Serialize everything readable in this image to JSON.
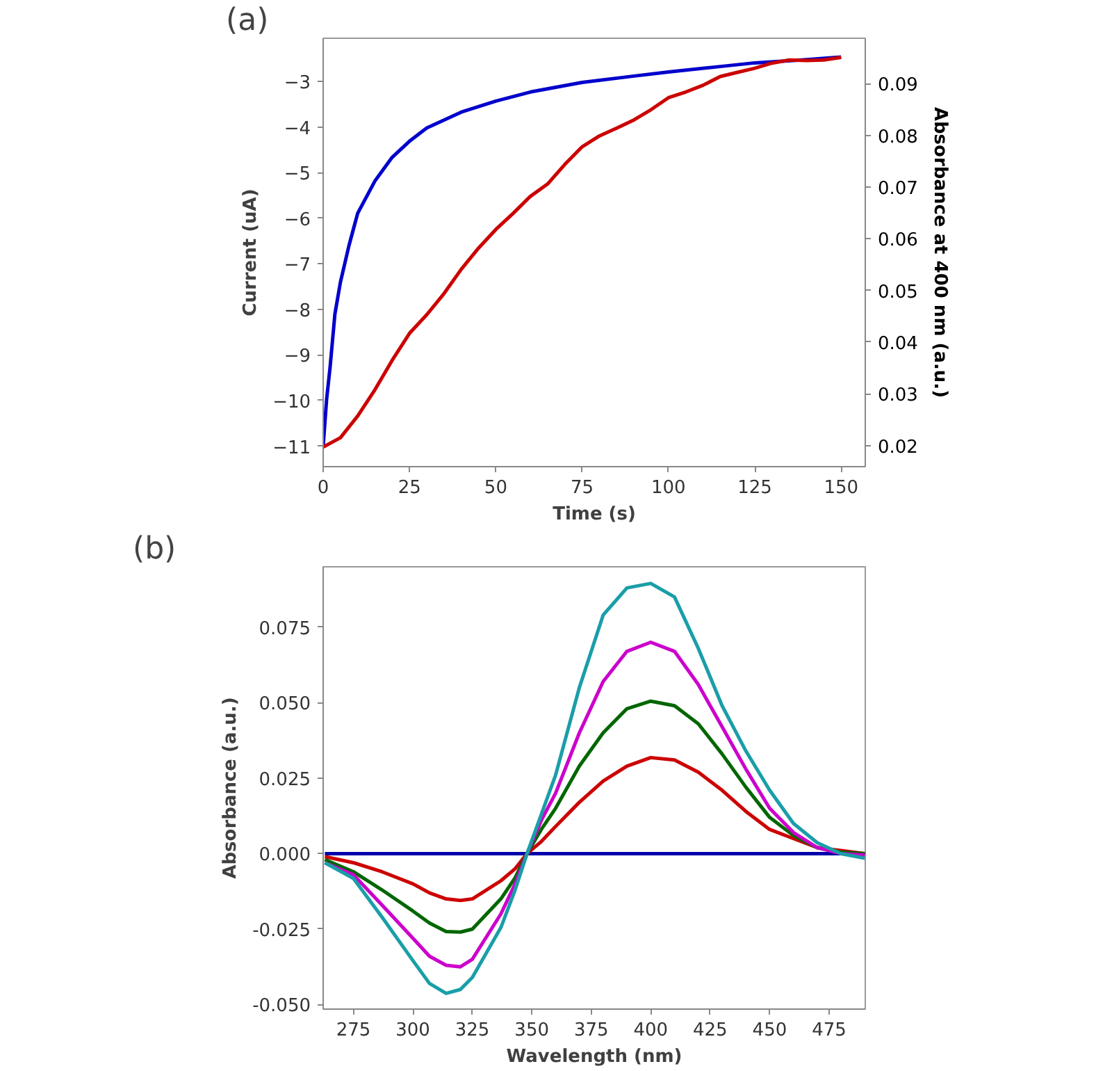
{
  "chart_data": [
    {
      "type": "line",
      "title": "(a)",
      "xlabel": "Time (s)",
      "ylabel": "Current (uA)",
      "y2label": "Absorbance at 400 nm (a.u.)",
      "xlim": [
        0,
        157
      ],
      "xticks": [
        0,
        25,
        50,
        75,
        100,
        125,
        150
      ],
      "ylim": [
        -11.45,
        -2.05
      ],
      "yticks": [
        -11,
        -10,
        -9,
        -8,
        -7,
        -6,
        -5,
        -4,
        -3
      ],
      "y2lim": [
        0.0159,
        0.0988
      ],
      "y2ticks": [
        0.02,
        0.03,
        0.04,
        0.05,
        0.06,
        0.07,
        0.08,
        0.09
      ],
      "grid": false,
      "series": [
        {
          "color": "#0000cc",
          "x": [
            0,
            1,
            2,
            3.4,
            5,
            7.5,
            10,
            15,
            20,
            25,
            30,
            40,
            50,
            60,
            75,
            90,
            100,
            115,
            125,
            140,
            150
          ],
          "values": [
            -11.0,
            -9.97,
            -9.27,
            -8.1,
            -7.4,
            -6.59,
            -5.89,
            -5.18,
            -4.66,
            -4.31,
            -4.02,
            -3.67,
            -3.43,
            -3.23,
            -3.02,
            -2.88,
            -2.79,
            -2.67,
            -2.59,
            -2.52,
            -2.46
          ]
        },
        {
          "color": "#cc0000",
          "axis": "y2",
          "x": [
            0,
            5,
            10,
            15,
            20,
            25,
            30,
            35,
            40,
            45,
            50,
            55,
            60,
            65,
            70,
            75,
            80,
            85,
            90,
            95,
            100,
            105,
            110,
            115,
            120,
            125,
            130,
            135,
            140,
            145,
            150
          ],
          "values": [
            0.0197,
            0.0215,
            0.0257,
            0.0308,
            0.0365,
            0.0417,
            0.0453,
            0.0494,
            0.0541,
            0.0582,
            0.0618,
            0.0649,
            0.0682,
            0.0706,
            0.0744,
            0.0778,
            0.0799,
            0.0814,
            0.083,
            0.085,
            0.0873,
            0.0884,
            0.0897,
            0.0914,
            0.0922,
            0.093,
            0.094,
            0.0946,
            0.0945,
            0.0946,
            0.0951
          ]
        }
      ]
    },
    {
      "type": "line",
      "title": "(b)",
      "xlabel": "Wavelength (nm)",
      "ylabel": "Absorbance (a.u.)",
      "xlim": [
        262.3,
        490.2
      ],
      "xticks": [
        275,
        300,
        325,
        350,
        375,
        400,
        425,
        450,
        475
      ],
      "ylim": [
        -0.0515,
        0.095
      ],
      "yticks": [
        {
          "value": -0.05,
          "label": "-0.050"
        },
        {
          "value": -0.025,
          "label": "-0.025"
        },
        {
          "value": 0,
          "label": "0.000"
        },
        {
          "value": 0.025,
          "label": "0.025"
        },
        {
          "value": 0.05,
          "label": "0.050"
        },
        {
          "value": 0.075,
          "label": "0.075"
        }
      ],
      "grid": false,
      "x": [
        263,
        275,
        287,
        300,
        307,
        314,
        320,
        325,
        337,
        343,
        348,
        354,
        360,
        370,
        380,
        390,
        400,
        410,
        420,
        430,
        440,
        450,
        460,
        470,
        480,
        490
      ],
      "series": [
        {
          "color": "#0000aa",
          "values": [
            0,
            0,
            0,
            0,
            0,
            0,
            0,
            0,
            0,
            0,
            0,
            0,
            0,
            0,
            0,
            0,
            0,
            0,
            0,
            0,
            0,
            0,
            0,
            0,
            0,
            0
          ]
        },
        {
          "color": "#cc0000",
          "values": [
            -0.001,
            -0.003,
            -0.006,
            -0.01,
            -0.013,
            -0.015,
            -0.0155,
            -0.015,
            -0.009,
            -0.005,
            0,
            0.004,
            0.009,
            0.017,
            0.024,
            0.029,
            0.0318,
            0.031,
            0.027,
            0.021,
            0.014,
            0.008,
            0.005,
            0.002,
            0.001,
            0
          ]
        },
        {
          "color": "#006600",
          "values": [
            -0.002,
            -0.006,
            -0.012,
            -0.019,
            -0.023,
            -0.0258,
            -0.026,
            -0.025,
            -0.015,
            -0.008,
            0,
            0.008,
            0.015,
            0.029,
            0.04,
            0.048,
            0.0505,
            0.049,
            0.043,
            0.033,
            0.022,
            0.012,
            0.006,
            0.002,
            0.0005,
            0
          ]
        },
        {
          "color": "#cc00cc",
          "values": [
            -0.003,
            -0.007,
            -0.017,
            -0.028,
            -0.034,
            -0.037,
            -0.0375,
            -0.035,
            -0.02,
            -0.01,
            0,
            0.011,
            0.02,
            0.04,
            0.057,
            0.067,
            0.07,
            0.067,
            0.056,
            0.042,
            0.028,
            0.015,
            0.007,
            0.002,
            0,
            -0.0005
          ]
        },
        {
          "color": "#1a9ea8",
          "values": [
            -0.003,
            -0.0082,
            -0.021,
            -0.0354,
            -0.043,
            -0.0463,
            -0.045,
            -0.041,
            -0.0245,
            -0.012,
            0,
            0.013,
            0.026,
            0.055,
            0.079,
            0.088,
            0.0895,
            0.085,
            0.068,
            0.049,
            0.034,
            0.021,
            0.01,
            0.0036,
            0,
            -0.0015
          ]
        }
      ]
    }
  ]
}
